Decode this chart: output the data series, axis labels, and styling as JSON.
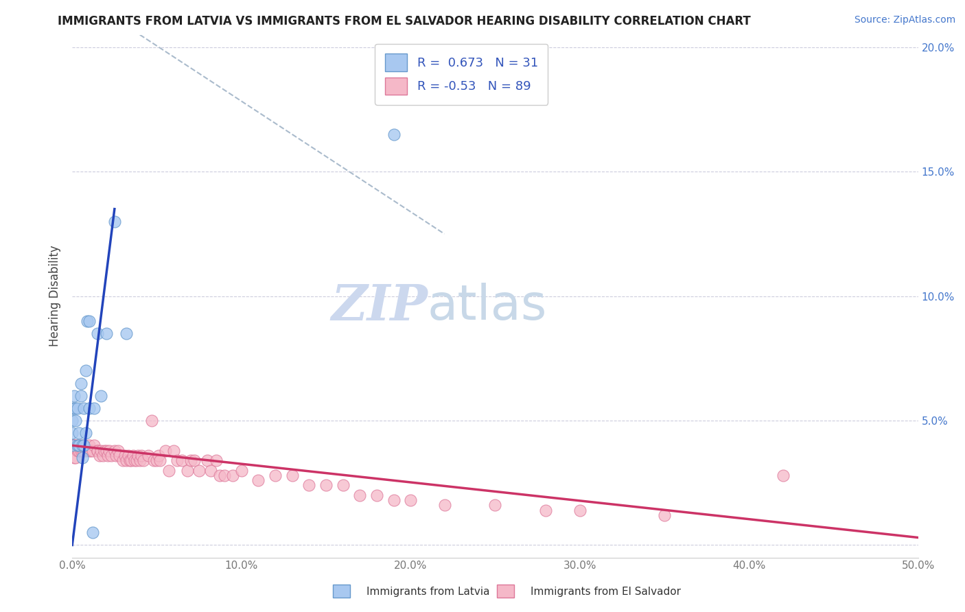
{
  "title": "IMMIGRANTS FROM LATVIA VS IMMIGRANTS FROM EL SALVADOR HEARING DISABILITY CORRELATION CHART",
  "source": "Source: ZipAtlas.com",
  "ylabel": "Hearing Disability",
  "xlim": [
    0.0,
    0.5
  ],
  "ylim": [
    -0.005,
    0.205
  ],
  "xtick_vals": [
    0.0,
    0.1,
    0.2,
    0.3,
    0.4,
    0.5
  ],
  "xtick_labels": [
    "0.0%",
    "10.0%",
    "20.0%",
    "30.0%",
    "40.0%",
    "50.0%"
  ],
  "ytick_vals": [
    0.0,
    0.05,
    0.1,
    0.15,
    0.2
  ],
  "ytick_labels_right": [
    "",
    "5.0%",
    "10.0%",
    "15.0%",
    "20.0%"
  ],
  "latvia_color": "#a8c8f0",
  "latvia_edge_color": "#6699cc",
  "el_salvador_color": "#f5b8c8",
  "el_salvador_edge_color": "#dd7799",
  "latvia_R": 0.673,
  "latvia_N": 31,
  "el_salvador_R": -0.53,
  "el_salvador_N": 89,
  "line_latvia_color": "#2244bb",
  "line_el_salvador_color": "#cc3366",
  "diag_line_color": "#aabbcc",
  "watermark_zip": "ZIP",
  "watermark_atlas": "atlas",
  "watermark_color": "#ccd8ee",
  "legend_label_latvia": "Immigrants from Latvia",
  "legend_label_el_salvador": "Immigrants from El Salvador",
  "latvia_scatter_x": [
    0.0,
    0.0,
    0.0,
    0.0,
    0.001,
    0.001,
    0.002,
    0.002,
    0.003,
    0.003,
    0.004,
    0.004,
    0.005,
    0.005,
    0.006,
    0.006,
    0.007,
    0.007,
    0.008,
    0.008,
    0.009,
    0.01,
    0.01,
    0.012,
    0.013,
    0.015,
    0.017,
    0.02,
    0.025,
    0.032,
    0.19
  ],
  "latvia_scatter_y": [
    0.04,
    0.045,
    0.05,
    0.055,
    0.055,
    0.06,
    0.05,
    0.055,
    0.04,
    0.055,
    0.04,
    0.045,
    0.06,
    0.065,
    0.035,
    0.04,
    0.04,
    0.055,
    0.045,
    0.07,
    0.09,
    0.055,
    0.09,
    0.005,
    0.055,
    0.085,
    0.06,
    0.085,
    0.13,
    0.085,
    0.165
  ],
  "el_salvador_scatter_x": [
    0.0,
    0.0,
    0.0,
    0.0,
    0.0,
    0.0,
    0.001,
    0.001,
    0.001,
    0.002,
    0.002,
    0.003,
    0.003,
    0.004,
    0.005,
    0.005,
    0.006,
    0.007,
    0.008,
    0.01,
    0.01,
    0.011,
    0.012,
    0.013,
    0.015,
    0.015,
    0.016,
    0.017,
    0.018,
    0.019,
    0.02,
    0.021,
    0.022,
    0.023,
    0.025,
    0.026,
    0.027,
    0.028,
    0.03,
    0.031,
    0.032,
    0.033,
    0.034,
    0.035,
    0.036,
    0.037,
    0.038,
    0.039,
    0.04,
    0.041,
    0.042,
    0.045,
    0.047,
    0.048,
    0.05,
    0.051,
    0.052,
    0.055,
    0.057,
    0.06,
    0.062,
    0.065,
    0.068,
    0.07,
    0.072,
    0.075,
    0.08,
    0.082,
    0.085,
    0.087,
    0.09,
    0.095,
    0.1,
    0.11,
    0.12,
    0.13,
    0.14,
    0.15,
    0.16,
    0.17,
    0.18,
    0.19,
    0.2,
    0.22,
    0.25,
    0.28,
    0.3,
    0.35,
    0.42
  ],
  "el_salvador_scatter_y": [
    0.04,
    0.04,
    0.04,
    0.04,
    0.04,
    0.04,
    0.035,
    0.04,
    0.04,
    0.035,
    0.04,
    0.038,
    0.04,
    0.038,
    0.038,
    0.04,
    0.038,
    0.038,
    0.038,
    0.038,
    0.04,
    0.038,
    0.038,
    0.04,
    0.038,
    0.038,
    0.036,
    0.038,
    0.036,
    0.038,
    0.038,
    0.036,
    0.038,
    0.036,
    0.038,
    0.036,
    0.038,
    0.036,
    0.034,
    0.036,
    0.034,
    0.036,
    0.034,
    0.034,
    0.036,
    0.034,
    0.034,
    0.036,
    0.034,
    0.036,
    0.034,
    0.036,
    0.05,
    0.034,
    0.034,
    0.036,
    0.034,
    0.038,
    0.03,
    0.038,
    0.034,
    0.034,
    0.03,
    0.034,
    0.034,
    0.03,
    0.034,
    0.03,
    0.034,
    0.028,
    0.028,
    0.028,
    0.03,
    0.026,
    0.028,
    0.028,
    0.024,
    0.024,
    0.024,
    0.02,
    0.02,
    0.018,
    0.018,
    0.016,
    0.016,
    0.014,
    0.014,
    0.012,
    0.028
  ],
  "latvia_line_x": [
    0.0,
    0.025
  ],
  "latvia_line_y": [
    0.0,
    0.135
  ],
  "el_salvador_line_x": [
    0.0,
    0.5
  ],
  "el_salvador_line_y": [
    0.04,
    0.003
  ],
  "diag_line_x": [
    0.04,
    0.22
  ],
  "diag_line_y": [
    0.205,
    0.125
  ]
}
